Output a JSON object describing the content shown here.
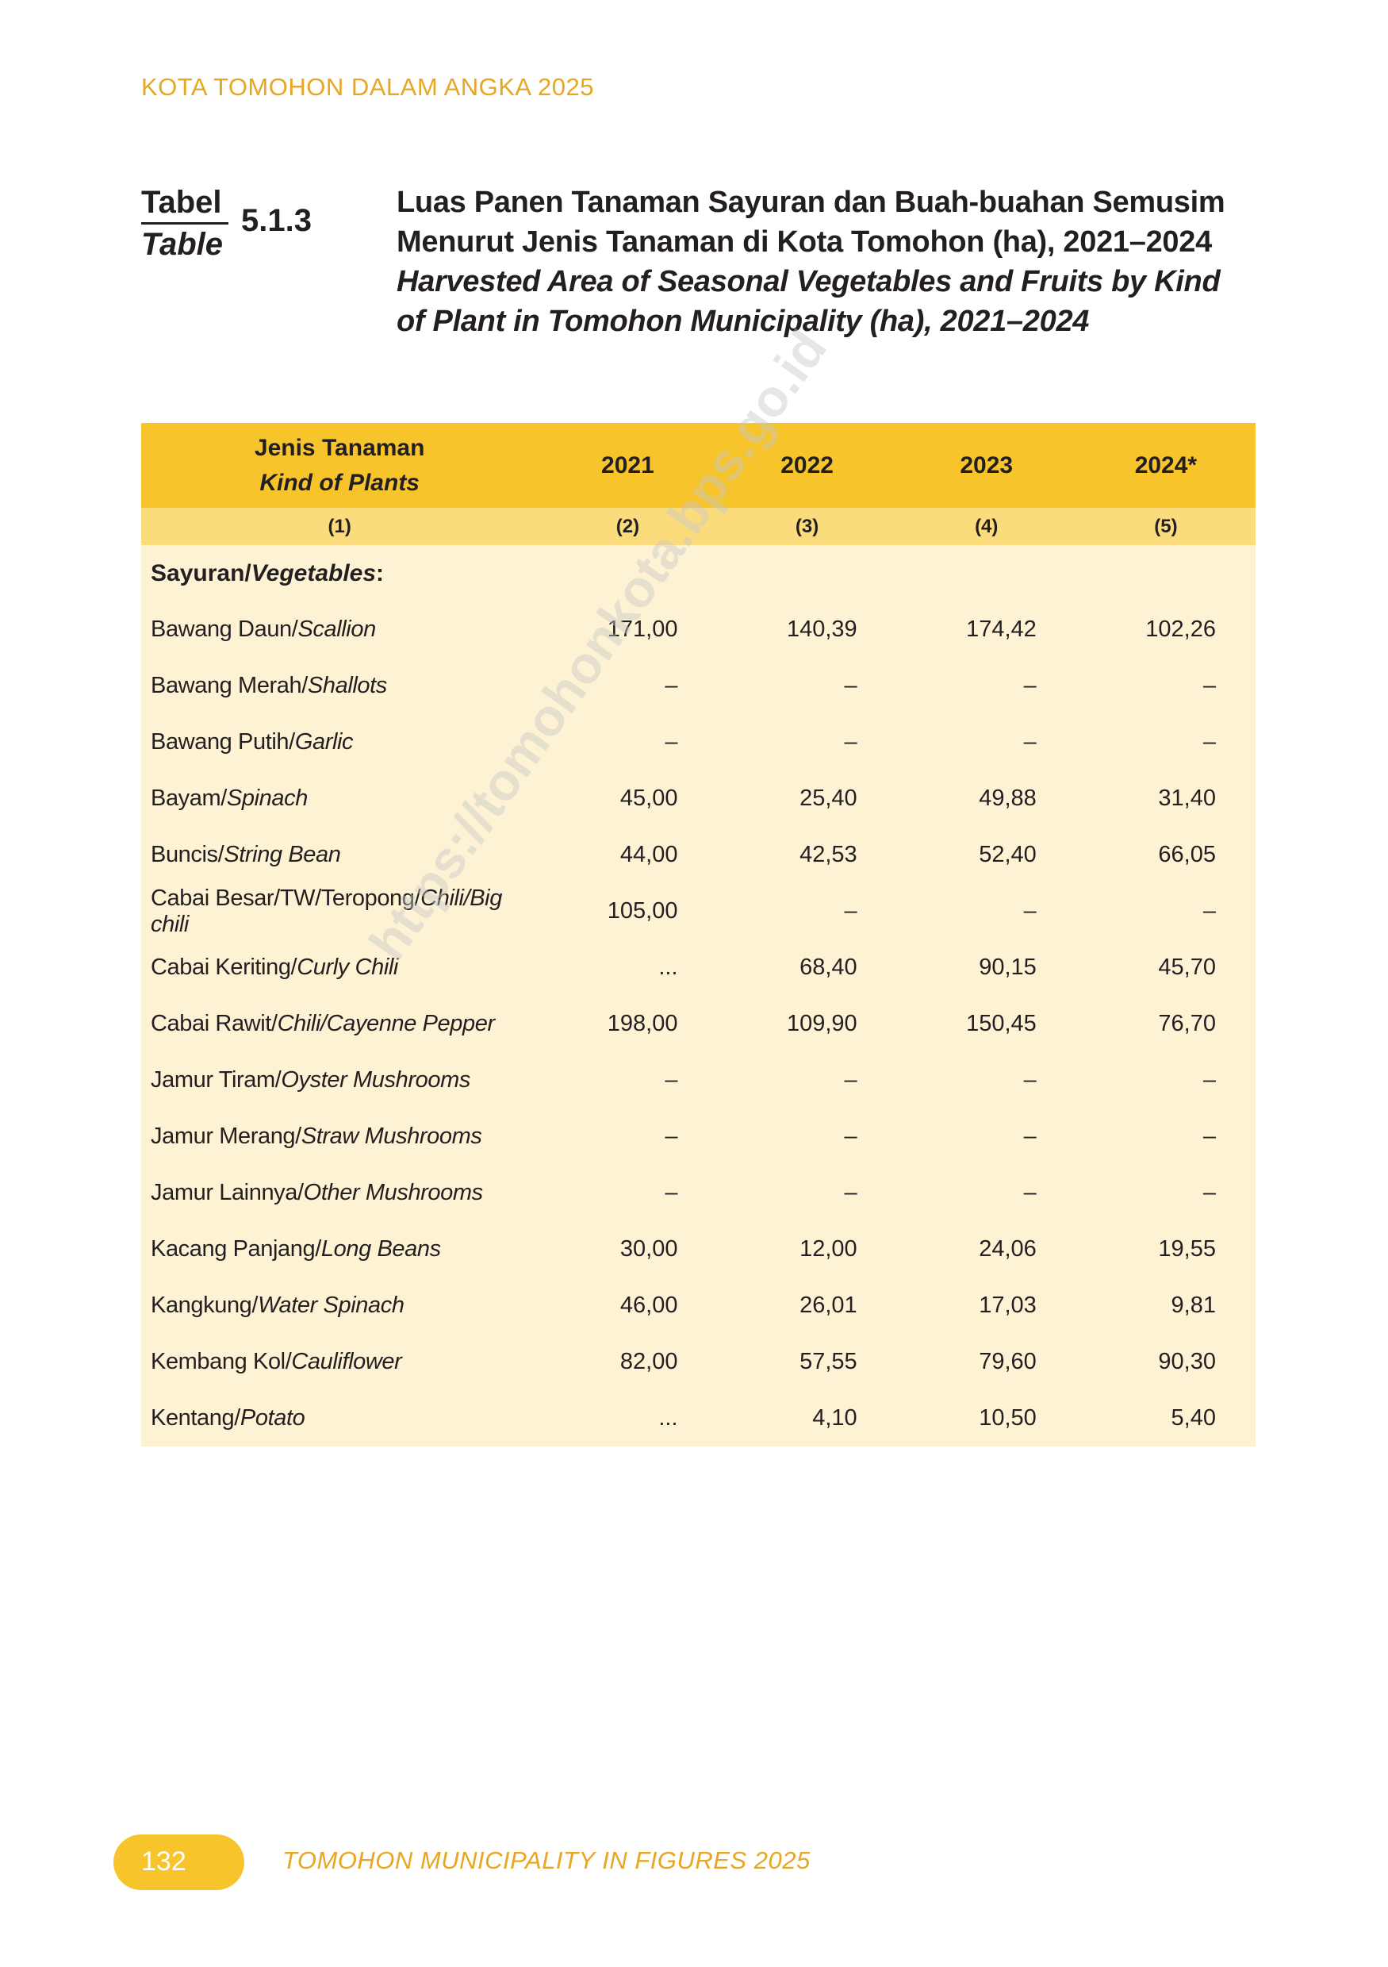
{
  "running_header": "KOTA TOMOHON DALAM ANGKA 2025",
  "table_label": {
    "id": "Tabel",
    "en": "Table",
    "number": "5.1.3"
  },
  "title": {
    "id_line1": "Luas Panen Tanaman Sayuran dan Buah-buahan Semusim",
    "id_line2": "Menurut Jenis Tanaman di Kota Tomohon (ha), 2021–2024",
    "en_line1": "Harvested Area of Seasonal Vegetables and Fruits by Kind",
    "en_line2": "of Plant in Tomohon Municipality (ha), 2021–2024"
  },
  "table": {
    "header": {
      "kind_id": "Jenis Tanaman",
      "kind_en": "Kind of Plants",
      "years": [
        "2021",
        "2022",
        "2023",
        "2024*"
      ]
    },
    "col_numbers": [
      "(1)",
      "(2)",
      "(3)",
      "(4)",
      "(5)"
    ],
    "section": {
      "id": "Sayuran/",
      "en": "Vegetables",
      "suffix": ":"
    },
    "rows": [
      {
        "id": "Bawang Daun/",
        "en": "Scallion",
        "values": [
          "171,00",
          "140,39",
          "174,42",
          "102,26"
        ]
      },
      {
        "id": "Bawang Merah/",
        "en": "Shallots",
        "values": [
          "–",
          "–",
          "–",
          "–"
        ]
      },
      {
        "id": "Bawang Putih/",
        "en": "Garlic",
        "values": [
          "–",
          "–",
          "–",
          "–"
        ]
      },
      {
        "id": "Bayam/",
        "en": "Spinach",
        "values": [
          "45,00",
          "25,40",
          "49,88",
          "31,40"
        ]
      },
      {
        "id": "Buncis/",
        "en": "String Bean",
        "values": [
          "44,00",
          "42,53",
          "52,40",
          "66,05"
        ]
      },
      {
        "id": "Cabai Besar/TW/Teropong/",
        "en": "Chili/Big chili",
        "values": [
          "105,00",
          "–",
          "–",
          "–"
        ]
      },
      {
        "id": "Cabai Keriting/",
        "en": "Curly Chili",
        "values": [
          "...",
          "68,40",
          "90,15",
          "45,70"
        ]
      },
      {
        "id": "Cabai Rawit/",
        "en": "Chili/Cayenne Pepper",
        "values": [
          "198,00",
          "109,90",
          "150,45",
          "76,70"
        ]
      },
      {
        "id": "Jamur Tiram/",
        "en": "Oyster Mushrooms",
        "values": [
          "–",
          "–",
          "–",
          "–"
        ]
      },
      {
        "id": "Jamur Merang/",
        "en": "Straw Mushrooms",
        "values": [
          "–",
          "–",
          "–",
          "–"
        ]
      },
      {
        "id": "Jamur Lainnya/",
        "en": "Other Mushrooms",
        "values": [
          "–",
          "–",
          "–",
          "–"
        ]
      },
      {
        "id": "Kacang Panjang/",
        "en": "Long Beans",
        "values": [
          "30,00",
          "12,00",
          "24,06",
          "19,55"
        ]
      },
      {
        "id": "Kangkung/",
        "en": "Water Spinach",
        "values": [
          "46,00",
          "26,01",
          "17,03",
          "9,81"
        ]
      },
      {
        "id": "Kembang Kol/",
        "en": "Cauliflower",
        "values": [
          "82,00",
          "57,55",
          "79,60",
          "90,30"
        ]
      },
      {
        "id": "Kentang/",
        "en": "Potato",
        "values": [
          "...",
          "4,10",
          "10,50",
          "5,40"
        ]
      }
    ]
  },
  "watermark": "https://tomohonkota.bps.go.id",
  "footer": {
    "page_number": "132",
    "text": "TOMOHON MUNICIPALITY IN FIGURES 2025"
  }
}
